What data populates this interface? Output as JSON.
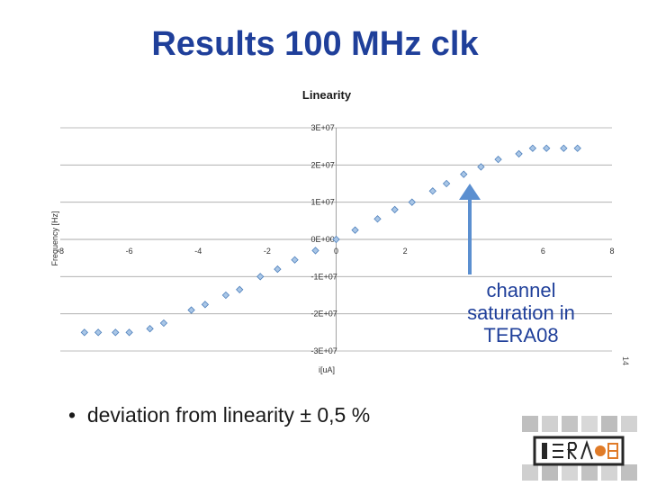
{
  "slide": {
    "title": "Results 100 MHz clk",
    "bullet": "deviation from linearity ± 0,5 %",
    "callout": "channel saturation in TERA08",
    "page_number": "14"
  },
  "colors": {
    "title": "#1f3f9a",
    "marker_fill": "#a9c6e6",
    "marker_stroke": "#4f81bd",
    "arrow": "#5b8fd0",
    "gridline": "#a6a6a6"
  },
  "chart_data": {
    "type": "scatter",
    "title": "Linearity",
    "xlabel": "i[uA]",
    "ylabel": "Frequency [Hz]",
    "xlim": [
      -8,
      8
    ],
    "ylim": [
      -30000000,
      30000000
    ],
    "x_ticks": [
      -8,
      -6,
      -4,
      -2,
      0,
      2,
      6,
      8
    ],
    "x_tick_labels": [
      "-8",
      "-6",
      "-4",
      "-2",
      "0",
      "2",
      "6",
      "8"
    ],
    "y_ticks": [
      30000000,
      20000000,
      10000000,
      0,
      -10000000,
      -20000000,
      -30000000
    ],
    "y_tick_labels": [
      "3E+07",
      "2E+07",
      "1E+07",
      "0E+00",
      "-1E+07",
      "-2E+07",
      "-3E+07"
    ],
    "grid": "horizontal",
    "series": [
      {
        "points": [
          [
            -7.3,
            -25000000
          ],
          [
            -6.9,
            -25000000
          ],
          [
            -6.4,
            -25000000
          ],
          [
            -6.0,
            -25000000
          ],
          [
            -5.4,
            -24000000
          ],
          [
            -5.0,
            -22500000
          ],
          [
            -4.2,
            -19000000
          ],
          [
            -3.8,
            -17500000
          ],
          [
            -3.2,
            -15000000
          ],
          [
            -2.8,
            -13500000
          ],
          [
            -2.2,
            -10000000
          ],
          [
            -1.7,
            -8000000
          ],
          [
            -1.2,
            -5500000
          ],
          [
            -0.6,
            -3000000
          ],
          [
            0.0,
            0
          ],
          [
            0.55,
            2500000
          ],
          [
            1.2,
            5500000
          ],
          [
            1.7,
            8000000
          ],
          [
            2.2,
            10000000
          ],
          [
            2.8,
            13000000
          ],
          [
            3.2,
            15000000
          ],
          [
            3.7,
            17500000
          ],
          [
            4.2,
            19500000
          ],
          [
            4.7,
            21500000
          ],
          [
            5.3,
            23000000
          ],
          [
            5.7,
            24500000
          ],
          [
            6.1,
            24500000
          ],
          [
            6.6,
            24500000
          ],
          [
            7.0,
            24500000
          ]
        ]
      }
    ]
  }
}
